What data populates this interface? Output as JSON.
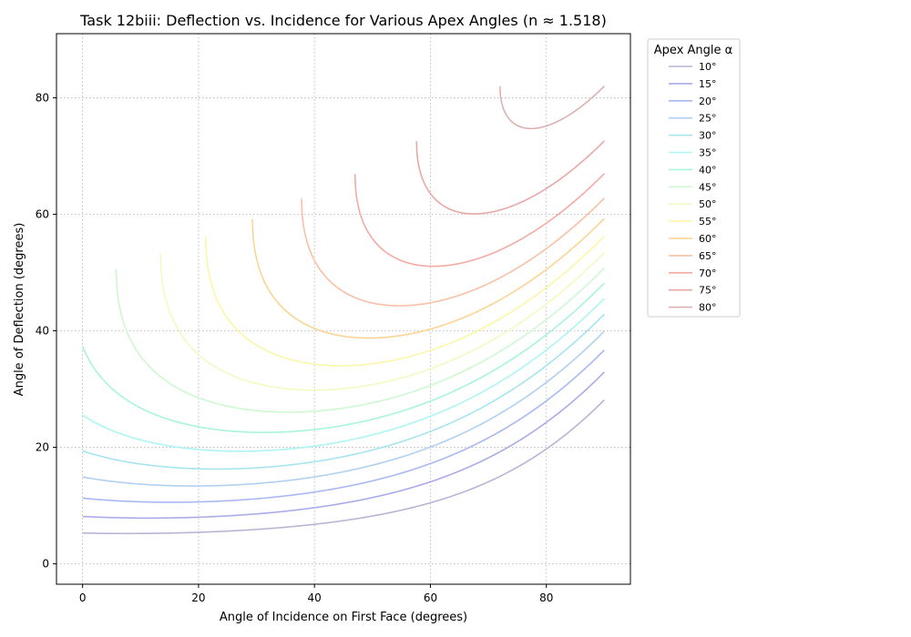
{
  "chart_data": {
    "type": "line",
    "title": "Task 12biii: Deflection vs. Incidence for Various Apex Angles (n ≈ 1.518)",
    "xlabel": "Angle of Incidence on First Face (degrees)",
    "ylabel": "Angle of Deflection (degrees)",
    "xlim": [
      -4.5,
      94.5
    ],
    "ylim": [
      -3.5,
      91
    ],
    "xticks": [
      0,
      20,
      40,
      60,
      80
    ],
    "yticks": [
      0,
      20,
      40,
      60,
      80
    ],
    "grid": true,
    "refractive_index": 1.518,
    "legend": {
      "title": "Apex Angle α",
      "placement": "outside-right"
    },
    "series": [
      {
        "name": "10°",
        "apex": 10,
        "color": "#b8b4d6"
      },
      {
        "name": "15°",
        "apex": 15,
        "color": "#a9ace8"
      },
      {
        "name": "20°",
        "apex": 20,
        "color": "#a8b8f4"
      },
      {
        "name": "25°",
        "apex": 25,
        "color": "#b0d0f2"
      },
      {
        "name": "30°",
        "apex": 30,
        "color": "#a6e4f0"
      },
      {
        "name": "35°",
        "apex": 35,
        "color": "#aef4f4"
      },
      {
        "name": "40°",
        "apex": 40,
        "color": "#a8f4dc"
      },
      {
        "name": "45°",
        "apex": 45,
        "color": "#cef8d2"
      },
      {
        "name": "50°",
        "apex": 50,
        "color": "#eefcc2"
      },
      {
        "name": "55°",
        "apex": 55,
        "color": "#fcf6a8"
      },
      {
        "name": "60°",
        "apex": 60,
        "color": "#fcd494"
      },
      {
        "name": "65°",
        "apex": 65,
        "color": "#f8c0a4"
      },
      {
        "name": "70°",
        "apex": 70,
        "color": "#f4aaa2"
      },
      {
        "name": "75°",
        "apex": 75,
        "color": "#e8a8a6"
      },
      {
        "name": "80°",
        "apex": 80,
        "color": "#dcb2b0"
      }
    ]
  }
}
